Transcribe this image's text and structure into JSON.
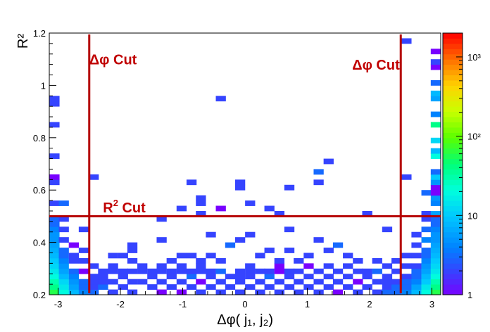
{
  "chart_data": {
    "type": "heatmap",
    "title": "",
    "xlabel": "Δφ( j₁, j₂)",
    "ylabel": "R²",
    "xlim": [
      -3.1416,
      3.1416
    ],
    "ylim": [
      0.2,
      1.2
    ],
    "x_ticks": [
      "-3",
      "-2",
      "-1",
      "0",
      "1",
      "2",
      "3"
    ],
    "x_tick_values": [
      -3,
      -2,
      -1,
      0,
      1,
      2,
      3
    ],
    "y_ticks": [
      "0.2",
      "0.4",
      "0.6",
      "0.8",
      "1",
      "1.2"
    ],
    "y_tick_values": [
      0.2,
      0.4,
      0.6,
      0.8,
      1.0,
      1.2
    ],
    "z_scale": "log",
    "zlim": [
      1,
      2000
    ],
    "z_ticks": [
      "1",
      "10",
      "10²",
      "10³"
    ],
    "z_tick_values": [
      1,
      10,
      100,
      1000
    ],
    "grid": false,
    "bin_width_x": 0.1571,
    "bin_width_y": 0.02,
    "cells": [
      [
        -3.06,
        0.21,
        60
      ],
      [
        -3.06,
        0.23,
        40
      ],
      [
        -3.06,
        0.25,
        30
      ],
      [
        -3.06,
        0.27,
        20
      ],
      [
        -3.06,
        0.29,
        15
      ],
      [
        -3.06,
        0.31,
        12
      ],
      [
        -3.06,
        0.33,
        10
      ],
      [
        -3.06,
        0.35,
        8
      ],
      [
        -3.06,
        0.37,
        7
      ],
      [
        -3.06,
        0.39,
        6
      ],
      [
        -3.06,
        0.41,
        5
      ],
      [
        -3.06,
        0.43,
        5
      ],
      [
        -3.06,
        0.45,
        4
      ],
      [
        -3.06,
        0.47,
        3
      ],
      [
        -3.06,
        0.49,
        3
      ],
      [
        -3.06,
        0.55,
        2
      ],
      [
        -3.06,
        0.63,
        2
      ],
      [
        -3.06,
        0.65,
        1
      ],
      [
        -3.06,
        0.73,
        2
      ],
      [
        -3.06,
        0.85,
        2
      ],
      [
        -3.06,
        0.93,
        2
      ],
      [
        -3.06,
        0.95,
        2
      ],
      [
        -2.91,
        0.21,
        20
      ],
      [
        -2.91,
        0.23,
        15
      ],
      [
        -2.91,
        0.25,
        12
      ],
      [
        -2.91,
        0.27,
        8
      ],
      [
        -2.91,
        0.29,
        6
      ],
      [
        -2.91,
        0.31,
        5
      ],
      [
        -2.91,
        0.33,
        4
      ],
      [
        -2.91,
        0.35,
        3
      ],
      [
        -2.91,
        0.37,
        3
      ],
      [
        -2.91,
        0.41,
        2
      ],
      [
        -2.91,
        0.45,
        2
      ],
      [
        -2.91,
        0.49,
        2
      ],
      [
        -2.91,
        0.55,
        3
      ],
      [
        -2.75,
        0.21,
        8
      ],
      [
        -2.75,
        0.23,
        6
      ],
      [
        -2.75,
        0.25,
        5
      ],
      [
        -2.75,
        0.27,
        4
      ],
      [
        -2.75,
        0.29,
        3
      ],
      [
        -2.75,
        0.33,
        2
      ],
      [
        -2.75,
        0.35,
        2
      ],
      [
        -2.75,
        0.39,
        1
      ],
      [
        -2.59,
        0.21,
        4
      ],
      [
        -2.59,
        0.23,
        3
      ],
      [
        -2.59,
        0.25,
        3
      ],
      [
        -2.59,
        0.29,
        1
      ],
      [
        -2.59,
        0.33,
        2
      ],
      [
        -2.59,
        0.37,
        2
      ],
      [
        -2.59,
        0.45,
        2
      ],
      [
        -2.43,
        0.21,
        3
      ],
      [
        -2.43,
        0.23,
        2
      ],
      [
        -2.43,
        0.25,
        2
      ],
      [
        -2.43,
        0.27,
        2
      ],
      [
        -2.43,
        0.31,
        2
      ],
      [
        -2.43,
        0.65,
        2
      ],
      [
        -2.28,
        0.23,
        3
      ],
      [
        -2.28,
        0.25,
        2
      ],
      [
        -2.28,
        0.27,
        2
      ],
      [
        -2.28,
        0.29,
        2
      ],
      [
        -2.12,
        0.21,
        2
      ],
      [
        -2.12,
        0.25,
        2
      ],
      [
        -2.12,
        0.29,
        2
      ],
      [
        -2.12,
        0.31,
        2
      ],
      [
        -2.12,
        0.35,
        2
      ],
      [
        -1.96,
        0.23,
        2
      ],
      [
        -1.96,
        0.27,
        2
      ],
      [
        -1.96,
        0.29,
        2
      ],
      [
        -1.96,
        0.35,
        2
      ],
      [
        -1.81,
        0.21,
        2
      ],
      [
        -1.81,
        0.25,
        2
      ],
      [
        -1.81,
        0.29,
        2
      ],
      [
        -1.81,
        0.33,
        2
      ],
      [
        -1.81,
        0.37,
        2
      ],
      [
        -1.81,
        0.39,
        2
      ],
      [
        -1.65,
        0.25,
        2
      ],
      [
        -1.65,
        0.29,
        2
      ],
      [
        -1.65,
        0.31,
        2
      ],
      [
        -1.49,
        0.23,
        2
      ],
      [
        -1.49,
        0.27,
        2
      ],
      [
        -1.49,
        0.29,
        2
      ],
      [
        -1.34,
        0.21,
        1
      ],
      [
        -1.34,
        0.25,
        2
      ],
      [
        -1.34,
        0.29,
        2
      ],
      [
        -1.34,
        0.31,
        2
      ],
      [
        -1.34,
        0.41,
        2
      ],
      [
        -1.34,
        0.49,
        2
      ],
      [
        -1.18,
        0.23,
        2
      ],
      [
        -1.18,
        0.27,
        2
      ],
      [
        -1.18,
        0.29,
        2
      ],
      [
        -1.18,
        0.33,
        2
      ],
      [
        -1.02,
        0.21,
        1
      ],
      [
        -1.02,
        0.25,
        2
      ],
      [
        -1.02,
        0.29,
        2
      ],
      [
        -1.02,
        0.31,
        2
      ],
      [
        -1.02,
        0.35,
        2
      ],
      [
        -1.02,
        0.53,
        2
      ],
      [
        -0.86,
        0.23,
        2
      ],
      [
        -0.86,
        0.27,
        3
      ],
      [
        -0.86,
        0.29,
        2
      ],
      [
        -0.86,
        0.35,
        2
      ],
      [
        -0.86,
        0.63,
        2
      ],
      [
        -0.71,
        0.21,
        2
      ],
      [
        -0.71,
        0.25,
        1
      ],
      [
        -0.71,
        0.29,
        2
      ],
      [
        -0.71,
        0.31,
        2
      ],
      [
        -0.71,
        0.33,
        2
      ],
      [
        -0.71,
        0.51,
        2
      ],
      [
        -0.71,
        0.55,
        2
      ],
      [
        -0.71,
        0.57,
        2
      ],
      [
        -0.55,
        0.23,
        2
      ],
      [
        -0.55,
        0.27,
        2
      ],
      [
        -0.55,
        0.29,
        2
      ],
      [
        -0.55,
        0.35,
        2
      ],
      [
        -0.55,
        0.43,
        2
      ],
      [
        -0.39,
        0.21,
        2
      ],
      [
        -0.39,
        0.25,
        2
      ],
      [
        -0.39,
        0.29,
        3
      ],
      [
        -0.39,
        0.33,
        2
      ],
      [
        -0.39,
        0.53,
        1
      ],
      [
        -0.39,
        0.95,
        2
      ],
      [
        -0.24,
        0.23,
        2
      ],
      [
        -0.24,
        0.27,
        2
      ],
      [
        -0.24,
        0.39,
        3
      ],
      [
        -0.08,
        0.21,
        2
      ],
      [
        -0.08,
        0.25,
        2
      ],
      [
        -0.08,
        0.27,
        2
      ],
      [
        -0.08,
        0.29,
        2
      ],
      [
        -0.08,
        0.41,
        2
      ],
      [
        -0.08,
        0.61,
        2
      ],
      [
        -0.08,
        0.63,
        2
      ],
      [
        0.08,
        0.23,
        2
      ],
      [
        0.08,
        0.27,
        2
      ],
      [
        0.08,
        0.29,
        2
      ],
      [
        0.08,
        0.31,
        2
      ],
      [
        0.08,
        0.43,
        2
      ],
      [
        0.08,
        0.55,
        2
      ],
      [
        0.24,
        0.21,
        2
      ],
      [
        0.24,
        0.25,
        2
      ],
      [
        0.24,
        0.29,
        2
      ],
      [
        0.24,
        0.35,
        2
      ],
      [
        0.39,
        0.23,
        2
      ],
      [
        0.39,
        0.27,
        3
      ],
      [
        0.39,
        0.29,
        2
      ],
      [
        0.39,
        0.37,
        2
      ],
      [
        0.39,
        0.53,
        2
      ],
      [
        0.55,
        0.21,
        2
      ],
      [
        0.55,
        0.25,
        2
      ],
      [
        0.55,
        0.29,
        1
      ],
      [
        0.55,
        0.31,
        1
      ],
      [
        0.55,
        0.33,
        2
      ],
      [
        0.55,
        0.51,
        2
      ],
      [
        0.71,
        0.23,
        2
      ],
      [
        0.71,
        0.27,
        2
      ],
      [
        0.71,
        0.29,
        2
      ],
      [
        0.71,
        0.37,
        2
      ],
      [
        0.71,
        0.45,
        2
      ],
      [
        0.71,
        0.61,
        2
      ],
      [
        0.86,
        0.21,
        2
      ],
      [
        0.86,
        0.25,
        2
      ],
      [
        0.86,
        0.29,
        2
      ],
      [
        0.86,
        0.33,
        2
      ],
      [
        1.02,
        0.23,
        2
      ],
      [
        1.02,
        0.27,
        2
      ],
      [
        1.02,
        0.31,
        1
      ],
      [
        1.02,
        0.35,
        2
      ],
      [
        1.18,
        0.21,
        2
      ],
      [
        1.18,
        0.25,
        2
      ],
      [
        1.18,
        0.29,
        2
      ],
      [
        1.18,
        0.41,
        2
      ],
      [
        1.18,
        0.63,
        2
      ],
      [
        1.18,
        0.67,
        3
      ],
      [
        1.34,
        0.23,
        2
      ],
      [
        1.34,
        0.27,
        2
      ],
      [
        1.34,
        0.31,
        2
      ],
      [
        1.34,
        0.37,
        2
      ],
      [
        1.34,
        0.71,
        2
      ],
      [
        1.49,
        0.21,
        1
      ],
      [
        1.49,
        0.25,
        2
      ],
      [
        1.49,
        0.29,
        2
      ],
      [
        1.49,
        0.39,
        3
      ],
      [
        1.65,
        0.23,
        2
      ],
      [
        1.65,
        0.27,
        2
      ],
      [
        1.65,
        0.31,
        2
      ],
      [
        1.65,
        0.35,
        2
      ],
      [
        1.81,
        0.21,
        2
      ],
      [
        1.81,
        0.25,
        1
      ],
      [
        1.81,
        0.29,
        2
      ],
      [
        1.81,
        0.33,
        2
      ],
      [
        1.96,
        0.23,
        2
      ],
      [
        1.96,
        0.27,
        2
      ],
      [
        1.96,
        0.29,
        2
      ],
      [
        1.96,
        0.51,
        2
      ],
      [
        2.12,
        0.21,
        2
      ],
      [
        2.12,
        0.25,
        2
      ],
      [
        2.12,
        0.29,
        3
      ],
      [
        2.12,
        0.33,
        2
      ],
      [
        2.28,
        0.21,
        3
      ],
      [
        2.28,
        0.23,
        2
      ],
      [
        2.28,
        0.25,
        2
      ],
      [
        2.28,
        0.27,
        2
      ],
      [
        2.28,
        0.31,
        2
      ],
      [
        2.28,
        0.45,
        2
      ],
      [
        2.43,
        0.21,
        3
      ],
      [
        2.43,
        0.23,
        3
      ],
      [
        2.43,
        0.25,
        2
      ],
      [
        2.43,
        0.29,
        2
      ],
      [
        2.43,
        0.33,
        2
      ],
      [
        2.59,
        0.21,
        4
      ],
      [
        2.59,
        0.23,
        3
      ],
      [
        2.59,
        0.25,
        3
      ],
      [
        2.59,
        0.27,
        2
      ],
      [
        2.59,
        0.31,
        2
      ],
      [
        2.59,
        0.35,
        2
      ],
      [
        2.59,
        0.65,
        2
      ],
      [
        2.59,
        1.17,
        2
      ],
      [
        2.75,
        0.21,
        8
      ],
      [
        2.75,
        0.23,
        6
      ],
      [
        2.75,
        0.25,
        4
      ],
      [
        2.75,
        0.27,
        3
      ],
      [
        2.75,
        0.29,
        3
      ],
      [
        2.75,
        0.31,
        2
      ],
      [
        2.75,
        0.35,
        2
      ],
      [
        2.75,
        0.39,
        2
      ],
      [
        2.75,
        0.43,
        2
      ],
      [
        2.91,
        0.21,
        20
      ],
      [
        2.91,
        0.23,
        15
      ],
      [
        2.91,
        0.25,
        10
      ],
      [
        2.91,
        0.27,
        8
      ],
      [
        2.91,
        0.29,
        6
      ],
      [
        2.91,
        0.31,
        5
      ],
      [
        2.91,
        0.33,
        4
      ],
      [
        2.91,
        0.35,
        3
      ],
      [
        2.91,
        0.37,
        3
      ],
      [
        2.91,
        0.41,
        4
      ],
      [
        2.91,
        0.45,
        3
      ],
      [
        2.91,
        0.49,
        2
      ],
      [
        2.91,
        0.51,
        2
      ],
      [
        2.91,
        0.59,
        3
      ],
      [
        3.06,
        0.21,
        60
      ],
      [
        3.06,
        0.23,
        40
      ],
      [
        3.06,
        0.25,
        30
      ],
      [
        3.06,
        0.27,
        20
      ],
      [
        3.06,
        0.29,
        15
      ],
      [
        3.06,
        0.31,
        12
      ],
      [
        3.06,
        0.33,
        10
      ],
      [
        3.06,
        0.35,
        8
      ],
      [
        3.06,
        0.37,
        7
      ],
      [
        3.06,
        0.39,
        6
      ],
      [
        3.06,
        0.41,
        5
      ],
      [
        3.06,
        0.43,
        5
      ],
      [
        3.06,
        0.45,
        4
      ],
      [
        3.06,
        0.47,
        3
      ],
      [
        3.06,
        0.49,
        3
      ],
      [
        3.06,
        0.51,
        6
      ],
      [
        3.06,
        0.55,
        4
      ],
      [
        3.06,
        0.57,
        5
      ],
      [
        3.06,
        0.59,
        1
      ],
      [
        3.06,
        0.61,
        1
      ],
      [
        3.06,
        0.63,
        5
      ],
      [
        3.06,
        0.65,
        10
      ],
      [
        3.06,
        0.67,
        3
      ],
      [
        3.06,
        0.73,
        20
      ],
      [
        3.06,
        0.75,
        8
      ],
      [
        3.06,
        0.79,
        12
      ],
      [
        3.06,
        0.85,
        40
      ],
      [
        3.06,
        0.89,
        4
      ],
      [
        3.06,
        0.95,
        6
      ],
      [
        3.06,
        0.97,
        8
      ],
      [
        3.06,
        1.01,
        3
      ],
      [
        3.06,
        1.07,
        1
      ],
      [
        3.06,
        1.09,
        2
      ],
      [
        3.06,
        1.13,
        1
      ]
    ],
    "annotations": [
      {
        "text": "Δφ Cut",
        "x": -2.5,
        "y": 1.08
      },
      {
        "text": "Δφ Cut",
        "x": 1.72,
        "y": 1.06
      },
      {
        "text": "R",
        "sup": "2",
        "suffix": " Cut",
        "x": -2.28,
        "y": 0.515
      }
    ],
    "cut_lines": [
      {
        "orientation": "vertical",
        "value": -2.5
      },
      {
        "orientation": "vertical",
        "value": 2.5
      },
      {
        "orientation": "horizontal",
        "value": 0.5
      }
    ]
  }
}
